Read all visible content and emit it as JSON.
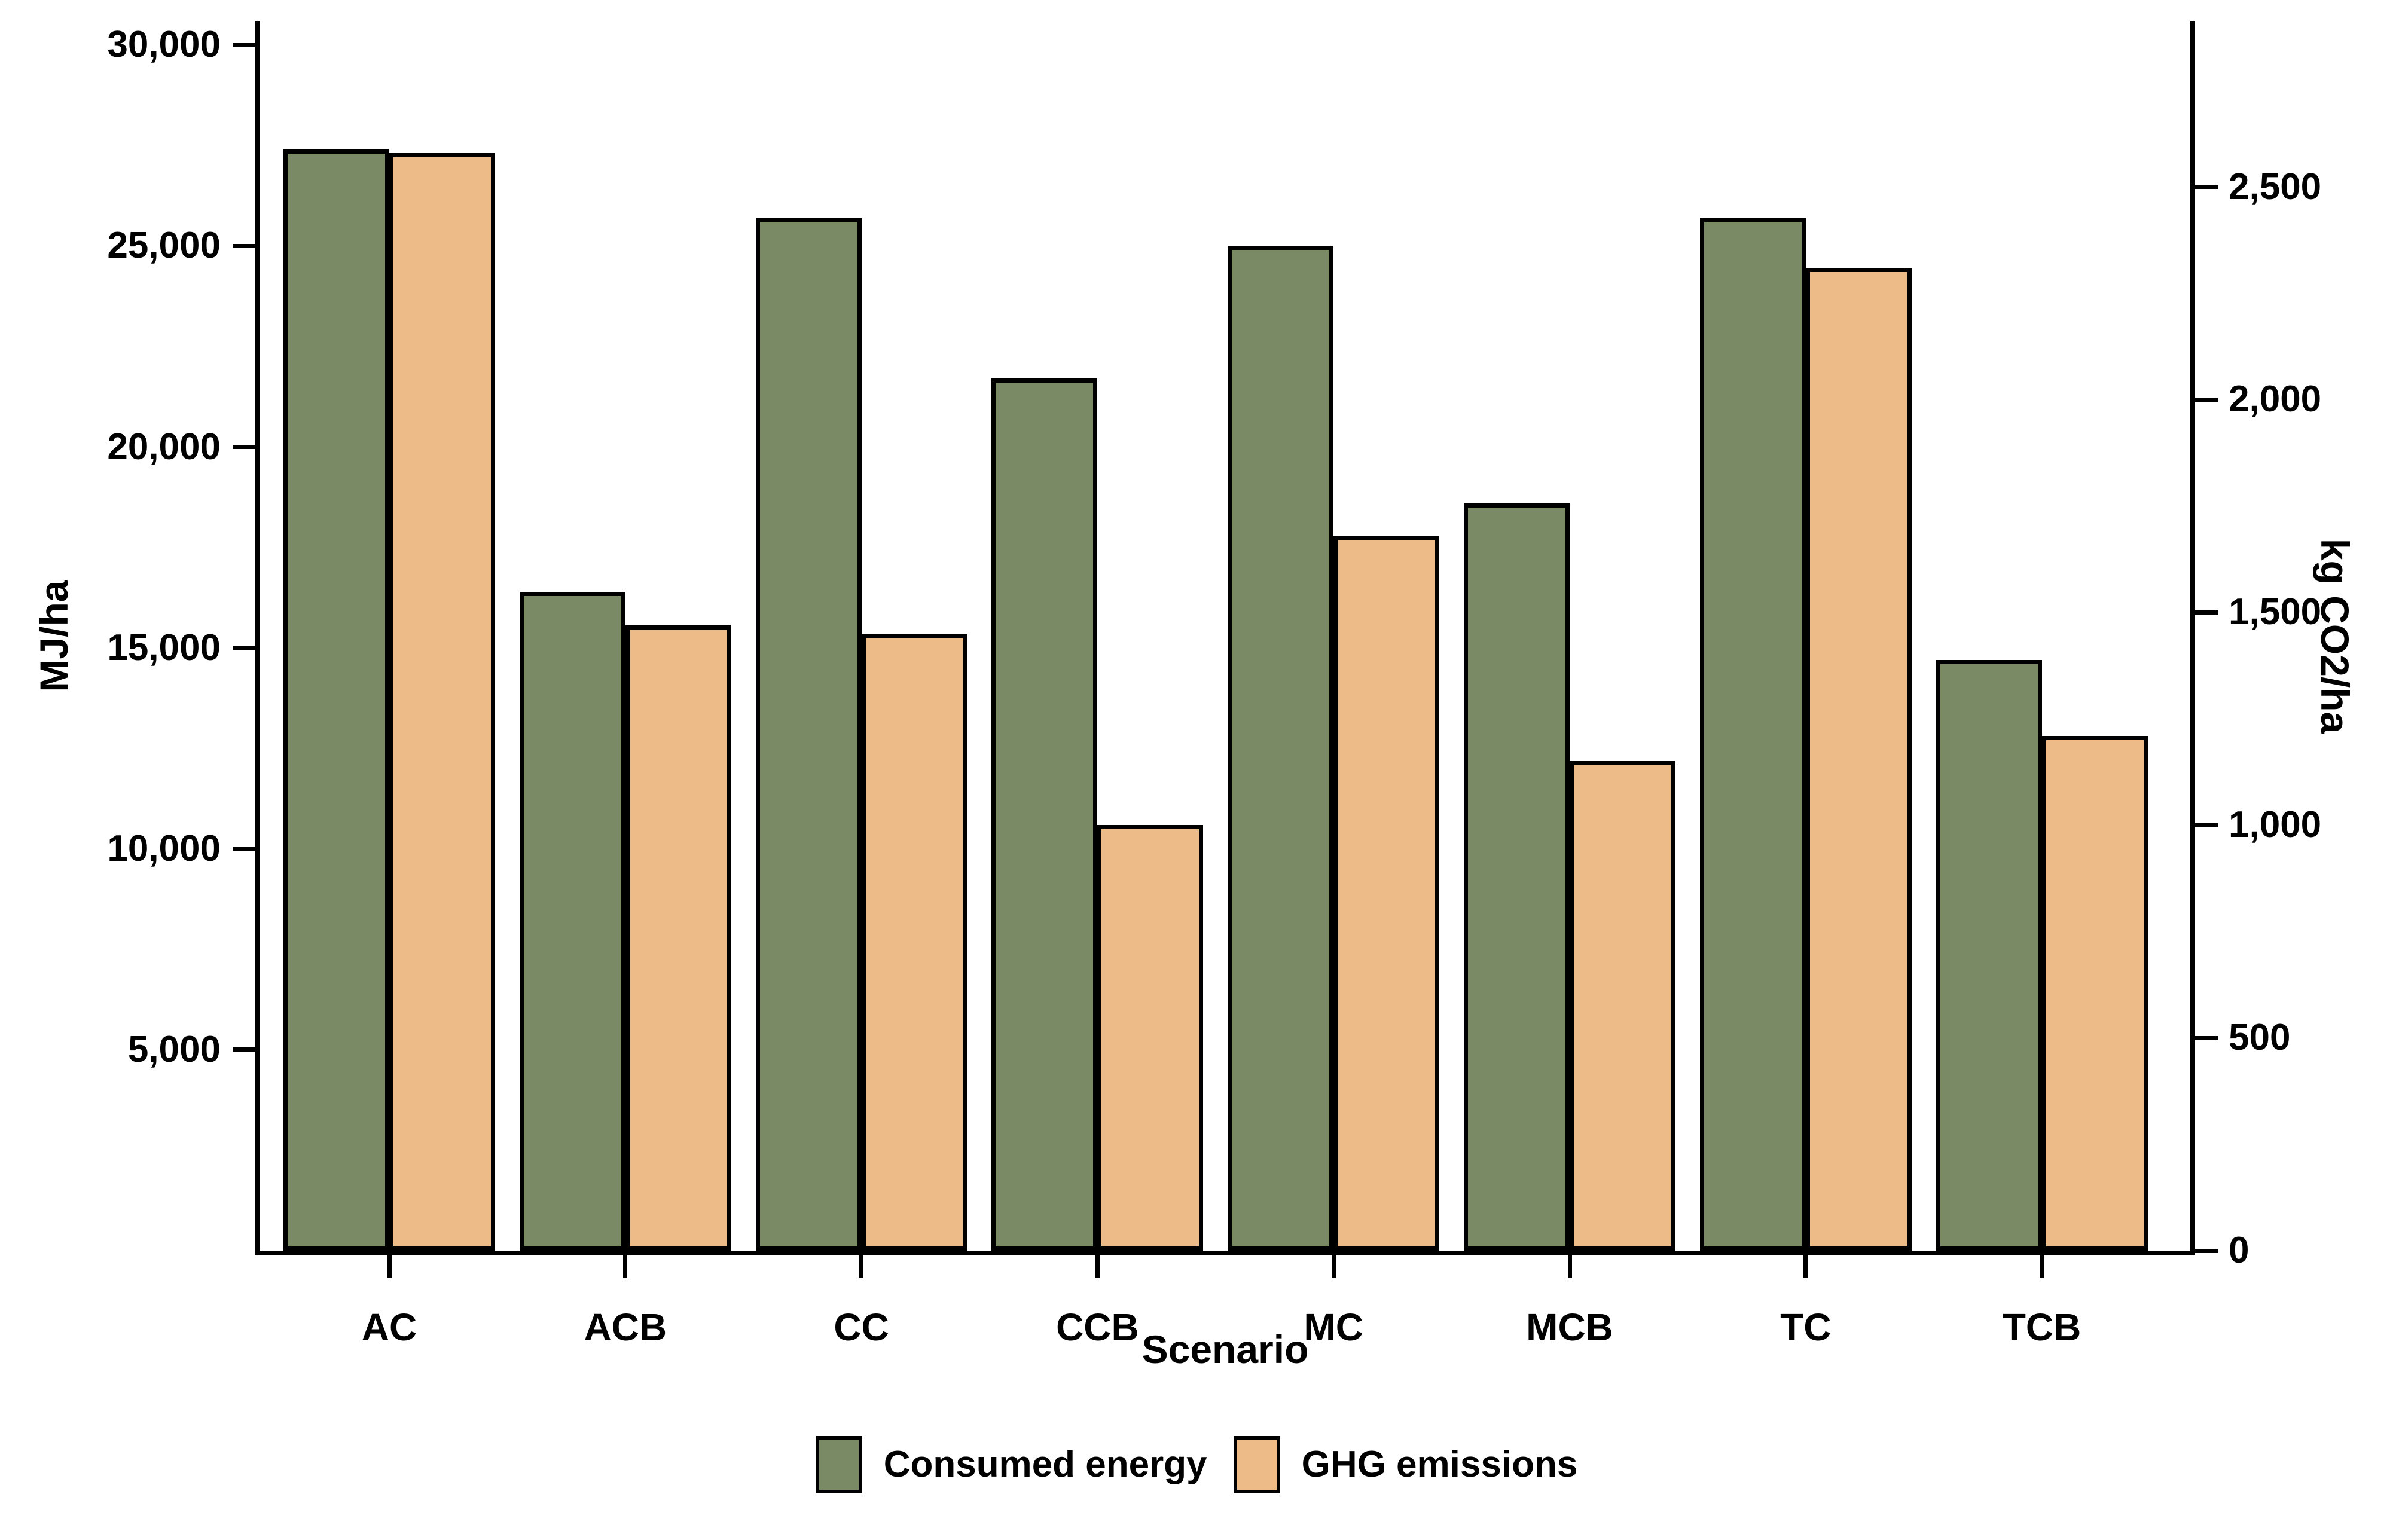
{
  "chart_data": {
    "type": "bar",
    "title": "",
    "categories": [
      "AC",
      "ACB",
      "CC",
      "CCB",
      "MC",
      "MCB",
      "TC",
      "TCB"
    ],
    "series": [
      {
        "name": "Consumed energy",
        "axis": "left",
        "unit": "MJ/ha",
        "values": [
          27400,
          16400,
          25700,
          21700,
          25000,
          18600,
          25700,
          14700
        ]
      },
      {
        "name": "GHG emissions",
        "axis": "right",
        "unit": "kg CO2/ha",
        "values": [
          2580,
          1470,
          1450,
          1000,
          1680,
          1150,
          2310,
          1210
        ]
      }
    ],
    "xlabel": "Scenario",
    "left_axis": {
      "label": "MJ/ha",
      "range": [
        0,
        30600
      ],
      "tick_values": [
        5000,
        10000,
        15000,
        20000,
        25000,
        30000
      ],
      "tick_labels": [
        "5,000",
        "10,000",
        "15,000",
        "20,000",
        "25,000",
        "30,000"
      ],
      "grid": false
    },
    "right_axis": {
      "label": "kg CO2/ha",
      "range": [
        0,
        2890
      ],
      "tick_values": [
        0,
        500,
        1000,
        1500,
        2000,
        2500
      ],
      "tick_labels": [
        "0",
        "500",
        "1,000",
        "1,500",
        "2,000",
        "2,500"
      ],
      "grid": false
    },
    "legend": {
      "position": "bottom",
      "entries": [
        "Consumed energy",
        "GHG emissions"
      ]
    },
    "colors": {
      "consumed_energy": "#7a8a64",
      "ghg_emissions": "#ecbb87",
      "bar_border": "#000000",
      "axis": "#000000",
      "text": "#000000",
      "background": "#ffffff"
    }
  }
}
